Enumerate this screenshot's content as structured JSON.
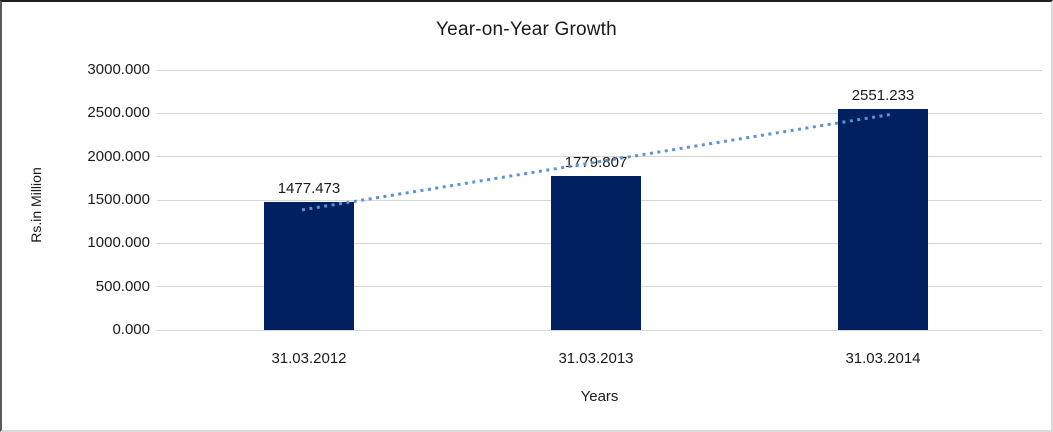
{
  "chart_data": {
    "type": "bar",
    "title": "Year-on-Year Growth",
    "xlabel": "Years",
    "ylabel": "Rs.in Million",
    "categories": [
      "31.03.2012",
      "31.03.2013",
      "31.03.2014"
    ],
    "values": [
      1477.473,
      1779.807,
      2551.233
    ],
    "data_labels": [
      "1477.473",
      "1779.807",
      "2551.233"
    ],
    "y_ticks": [
      "0.000",
      "500.000",
      "1000.000",
      "1500.000",
      "2000.000",
      "2500.000",
      "3000.000"
    ],
    "ylim": [
      0,
      3000
    ],
    "grid": "horizontal-major",
    "legend": "none",
    "series": [
      {
        "name": "Year-on-Year Growth",
        "values": [
          1477.473,
          1779.807,
          2551.233
        ]
      }
    ],
    "trendline": {
      "type": "linear",
      "style": "dotted"
    },
    "colors": {
      "bar": "#002060",
      "trendline": "#5b93d6",
      "gridline": "#d6d6d6",
      "text": "#1a1a1a"
    }
  }
}
